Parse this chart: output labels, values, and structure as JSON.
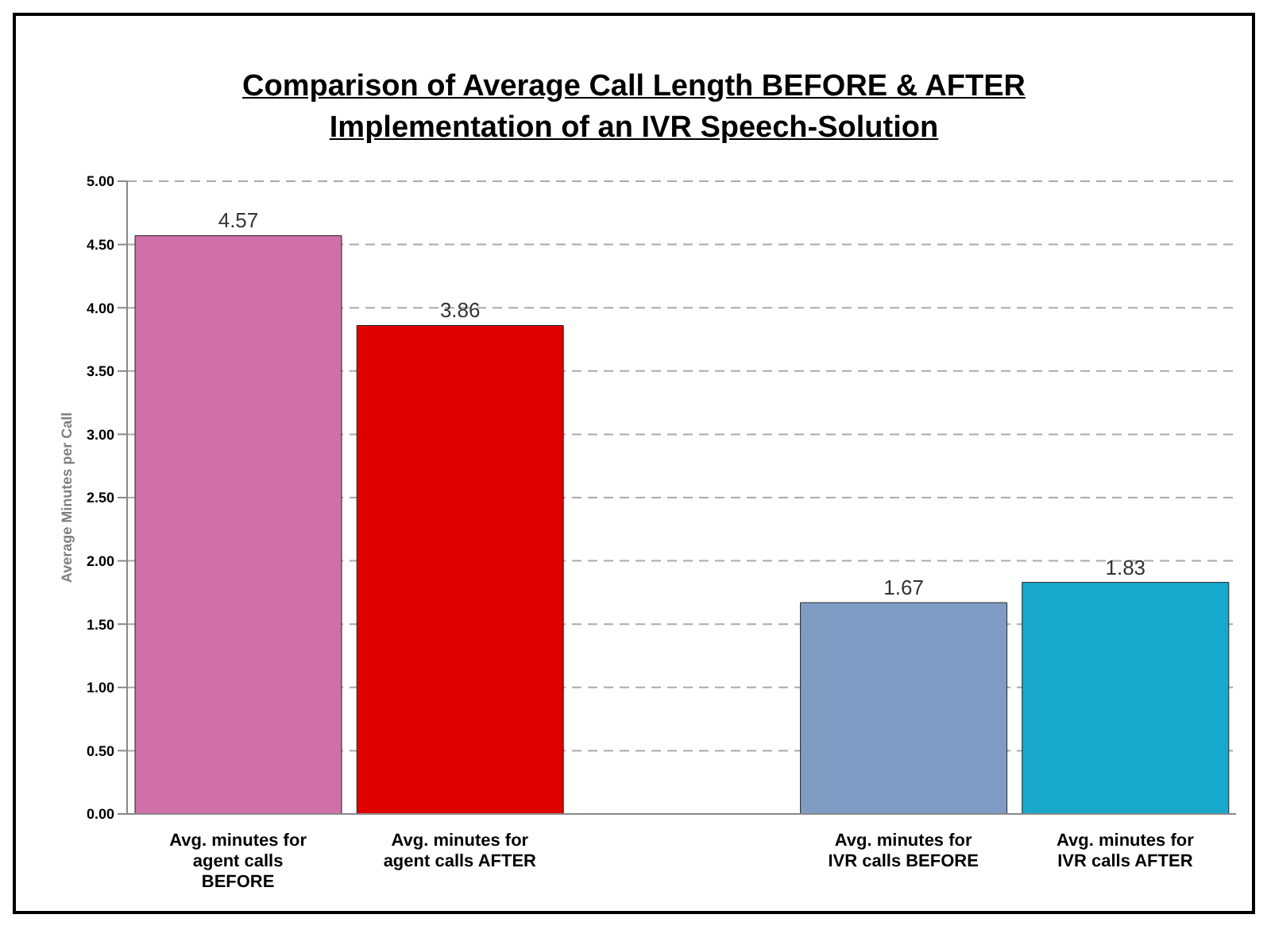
{
  "chart_data": {
    "type": "bar",
    "title": "Comparison of Average Call Length BEFORE & AFTER Implementation of an IVR Speech-Solution",
    "ylabel": "Average Minutes per Call",
    "categories": [
      "Avg. minutes for agent calls BEFORE",
      "Avg. minutes for agent calls AFTER",
      null,
      "Avg. minutes for IVR calls BEFORE",
      "Avg. minutes for IVR calls AFTER"
    ],
    "values": [
      4.57,
      3.86,
      null,
      1.67,
      1.83
    ],
    "colors": [
      "#d070a8",
      "#e00000",
      "#000000",
      "#7f9cc4",
      "#18a8cc"
    ],
    "ylim": [
      0,
      5
    ],
    "yticks": [
      {
        "value": 0,
        "label": "0.00"
      },
      {
        "value": 0.5,
        "label": "0.50"
      },
      {
        "value": 1,
        "label": "1.00"
      },
      {
        "value": 1.5,
        "label": "1.50"
      },
      {
        "value": 2,
        "label": "2.00"
      },
      {
        "value": 2.5,
        "label": "2.50"
      },
      {
        "value": 3,
        "label": "3.00"
      },
      {
        "value": 3.5,
        "label": "3.50"
      },
      {
        "value": 4,
        "label": "4.00"
      },
      {
        "value": 4.5,
        "label": "4.50"
      },
      {
        "value": 5,
        "label": "5.00"
      }
    ],
    "grid": "y",
    "data_labels": true,
    "legend": false
  }
}
